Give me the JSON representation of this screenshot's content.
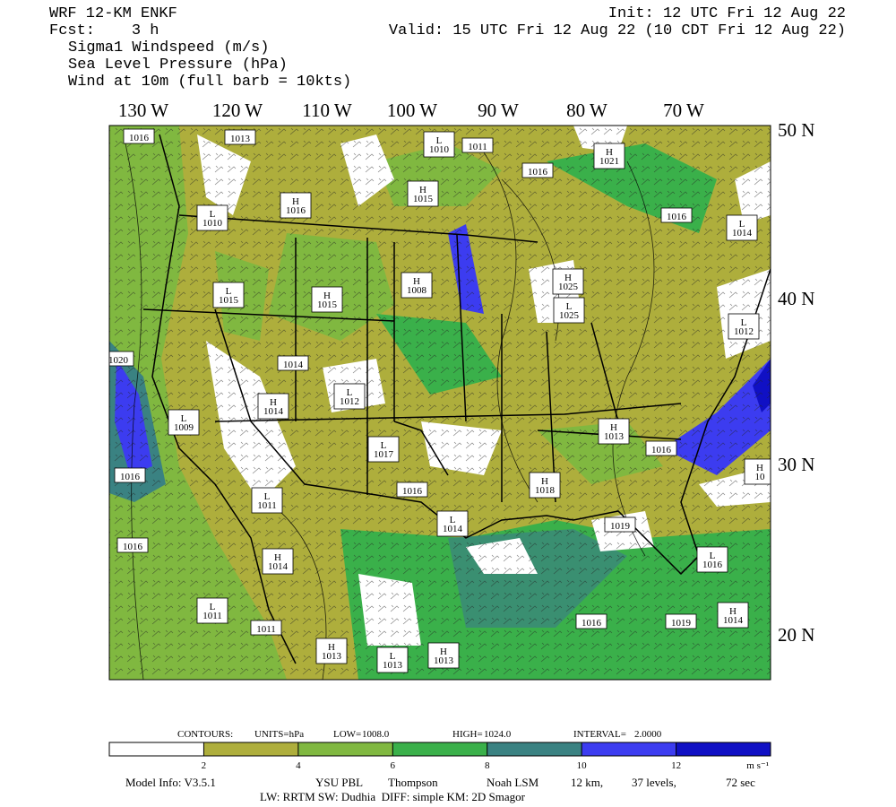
{
  "header": {
    "left": [
      "WRF 12-KM ENKF",
      "Fcst:    3 h",
      "Sigma1 Windspeed (m/s)",
      "Sea Level Pressure (hPa)",
      "Wind at 10m (full barb = 10kts)"
    ],
    "right": [
      "Init: 12 UTC Fri 12 Aug 22",
      "Valid: 15 UTC Fri 12 Aug 22 (10 CDT Fri 12 Aug 22)"
    ]
  },
  "map": {
    "longitude_labels": [
      "130 W",
      "120 W",
      "110 W",
      "100 W",
      "90 W",
      "80 W",
      "70 W"
    ],
    "latitude_labels": [
      "50 N",
      "40 N",
      "30 N",
      "20 N"
    ],
    "pressure_centers": [
      {
        "value": "1016"
      },
      {
        "value": "1013"
      },
      {
        "symbol": "L",
        "value": "1010"
      },
      {
        "value": "1011"
      },
      {
        "symbol": "H",
        "value": "1021"
      },
      {
        "value": "1016"
      },
      {
        "symbol": "H",
        "value": "1015"
      },
      {
        "symbol": "H",
        "value": "1016"
      },
      {
        "symbol": "L",
        "value": "1010"
      },
      {
        "value": "1016"
      },
      {
        "symbol": "L",
        "value": "1014"
      },
      {
        "symbol": "H",
        "value": "1008"
      },
      {
        "symbol": "H",
        "value": "1025"
      },
      {
        "symbol": "L",
        "value": "1015"
      },
      {
        "symbol": "H",
        "value": "1015"
      },
      {
        "symbol": "L",
        "value": "1025"
      },
      {
        "symbol": "L",
        "value": "1012"
      },
      {
        "value": "1014"
      },
      {
        "value": "1020"
      },
      {
        "symbol": "L",
        "value": "1012"
      },
      {
        "symbol": "H",
        "value": "1014"
      },
      {
        "symbol": "L",
        "value": "1009"
      },
      {
        "symbol": "H",
        "value": "1013"
      },
      {
        "value": "1016"
      },
      {
        "symbol": "L",
        "value": "1017"
      },
      {
        "value": "1016"
      },
      {
        "symbol": "H",
        "value": "10"
      },
      {
        "value": "1016"
      },
      {
        "symbol": "H",
        "value": "1018"
      },
      {
        "symbol": "L",
        "value": "1011"
      },
      {
        "symbol": "L",
        "value": "1014"
      },
      {
        "value": "1019"
      },
      {
        "value": "1016"
      },
      {
        "symbol": "H",
        "value": "1014"
      },
      {
        "symbol": "L",
        "value": "1016"
      },
      {
        "symbol": "L",
        "value": "1011"
      },
      {
        "value": "1011"
      },
      {
        "value": "1016"
      },
      {
        "value": "1019"
      },
      {
        "symbol": "H",
        "value": "1014"
      },
      {
        "symbol": "H",
        "value": "1013"
      },
      {
        "symbol": "L",
        "value": "1013"
      },
      {
        "symbol": "H",
        "value": "1013"
      }
    ]
  },
  "contours": {
    "label": "CONTOURS:",
    "units": "UNITS=hPa",
    "low_label": "LOW=",
    "low": "1008.0",
    "high_label": "HIGH=",
    "high": "1024.0",
    "interval_label": "INTERVAL=",
    "interval": "2.0000"
  },
  "colorbar": {
    "colors": [
      "#ffffff",
      "#aeae3c",
      "#80b840",
      "#3ab04a",
      "#3a8282",
      "#3c3cf0",
      "#1010c4"
    ],
    "ticks": [
      2,
      4,
      6,
      8,
      10,
      12
    ],
    "units": "m s⁻¹"
  },
  "footer": {
    "line1": [
      "Model Info: V3.5.1",
      "YSU PBL",
      "Thompson",
      "Noah LSM",
      "12 km,",
      "37 levels,",
      "72 sec"
    ],
    "line2": "LW: RRTM SW: Dudhia  DIFF: simple KM: 2D Smagor"
  }
}
